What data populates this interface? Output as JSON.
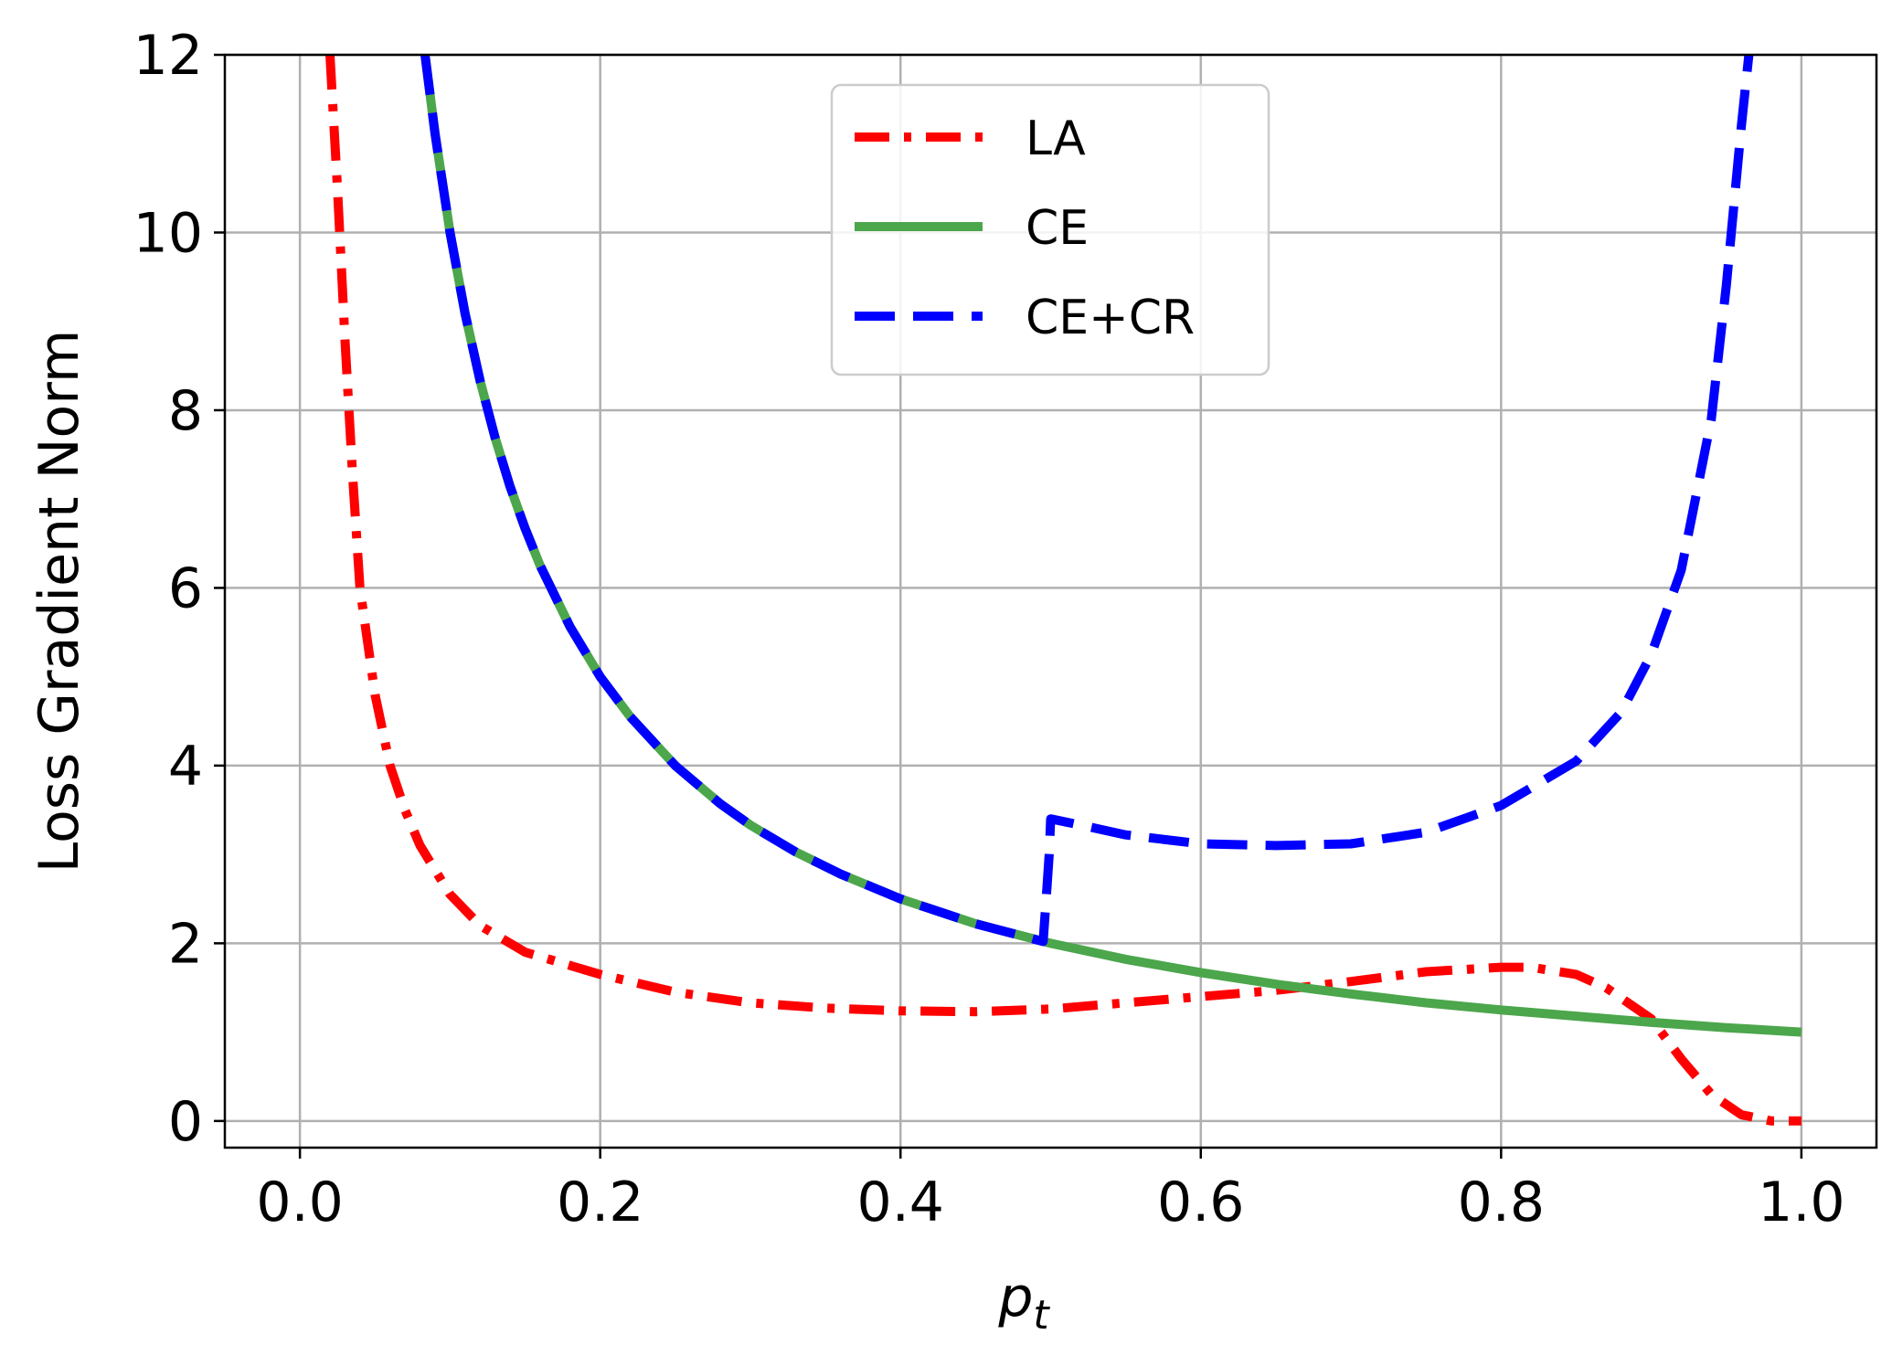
{
  "chart_data": {
    "type": "line",
    "xlabel": "p",
    "xlabel_sub": "t",
    "ylabel": "Loss Gradient Norm",
    "xlim": [
      -0.05,
      1.05
    ],
    "ylim": [
      -0.3,
      12
    ],
    "grid": true,
    "legend_position": "top-center",
    "x_ticks": [
      {
        "value": 0.0,
        "label": "0.0"
      },
      {
        "value": 0.2,
        "label": "0.2"
      },
      {
        "value": 0.4,
        "label": "0.4"
      },
      {
        "value": 0.6,
        "label": "0.6"
      },
      {
        "value": 0.8,
        "label": "0.8"
      },
      {
        "value": 1.0,
        "label": "1.0"
      }
    ],
    "y_ticks": [
      {
        "value": 0,
        "label": "0"
      },
      {
        "value": 2,
        "label": "2"
      },
      {
        "value": 4,
        "label": "4"
      },
      {
        "value": 6,
        "label": "6"
      },
      {
        "value": 8,
        "label": "8"
      },
      {
        "value": 10,
        "label": "10"
      },
      {
        "value": 12,
        "label": "12"
      }
    ],
    "series": [
      {
        "name": "LA",
        "color": "#ff0000",
        "style": "dashdot",
        "x": [
          0.02,
          0.025,
          0.03,
          0.035,
          0.04,
          0.05,
          0.06,
          0.07,
          0.08,
          0.1,
          0.12,
          0.15,
          0.2,
          0.25,
          0.3,
          0.35,
          0.4,
          0.45,
          0.5,
          0.55,
          0.6,
          0.65,
          0.7,
          0.75,
          0.8,
          0.82,
          0.85,
          0.87,
          0.9,
          0.92,
          0.94,
          0.96,
          0.98,
          1.0
        ],
        "y": [
          12.0,
          10.5,
          8.8,
          7.3,
          6.0,
          4.8,
          4.0,
          3.5,
          3.1,
          2.55,
          2.2,
          1.9,
          1.65,
          1.45,
          1.33,
          1.27,
          1.24,
          1.23,
          1.26,
          1.33,
          1.4,
          1.47,
          1.57,
          1.68,
          1.73,
          1.73,
          1.65,
          1.5,
          1.15,
          0.7,
          0.3,
          0.07,
          0.0,
          0.0
        ]
      },
      {
        "name": "CE",
        "color": "#4ca64c",
        "style": "solid",
        "x": [
          0.0833,
          0.09,
          0.1,
          0.11,
          0.12,
          0.13,
          0.14,
          0.15,
          0.16,
          0.18,
          0.2,
          0.22,
          0.25,
          0.28,
          0.3,
          0.33,
          0.36,
          0.4,
          0.45,
          0.5,
          0.55,
          0.6,
          0.65,
          0.7,
          0.75,
          0.8,
          0.85,
          0.9,
          0.95,
          1.0
        ],
        "y": [
          12.0,
          11.11,
          10.0,
          9.09,
          8.33,
          7.69,
          7.14,
          6.67,
          6.25,
          5.56,
          5.0,
          4.55,
          4.0,
          3.57,
          3.33,
          3.03,
          2.78,
          2.5,
          2.22,
          2.0,
          1.82,
          1.67,
          1.54,
          1.43,
          1.33,
          1.25,
          1.18,
          1.11,
          1.05,
          1.0
        ]
      },
      {
        "name": "CE+CR",
        "color": "#0000ff",
        "style": "dashed",
        "x": [
          0.0833,
          0.09,
          0.1,
          0.11,
          0.12,
          0.13,
          0.14,
          0.15,
          0.16,
          0.18,
          0.2,
          0.22,
          0.25,
          0.28,
          0.3,
          0.33,
          0.36,
          0.4,
          0.45,
          0.495,
          0.497,
          0.499,
          0.5,
          0.52,
          0.55,
          0.6,
          0.65,
          0.7,
          0.75,
          0.8,
          0.85,
          0.88,
          0.9,
          0.92,
          0.94,
          0.95,
          0.96,
          0.965
        ],
        "y": [
          12.0,
          11.11,
          10.0,
          9.09,
          8.33,
          7.69,
          7.14,
          6.67,
          6.25,
          5.56,
          5.0,
          4.55,
          4.0,
          3.57,
          3.33,
          3.03,
          2.78,
          2.5,
          2.22,
          2.02,
          2.5,
          3.0,
          3.4,
          3.33,
          3.22,
          3.12,
          3.1,
          3.12,
          3.25,
          3.55,
          4.05,
          4.6,
          5.25,
          6.2,
          7.9,
          9.4,
          11.2,
          12.0
        ]
      }
    ]
  }
}
